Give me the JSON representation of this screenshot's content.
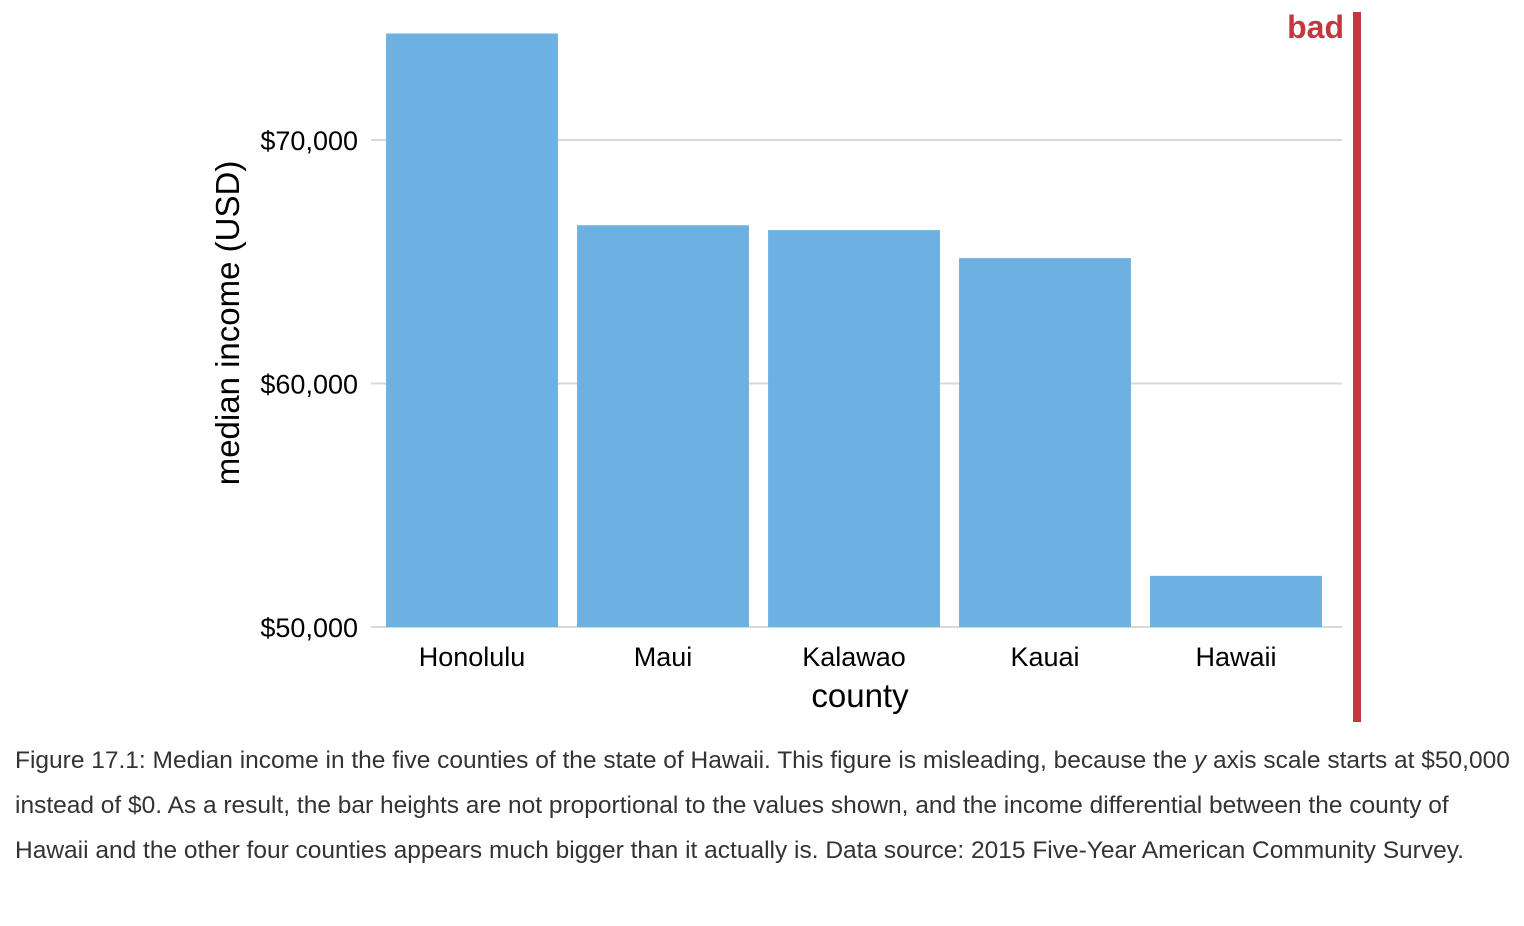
{
  "chart_data": {
    "type": "bar",
    "categories": [
      "Honolulu",
      "Maui",
      "Kalawao",
      "Kauai",
      "Hawaii"
    ],
    "values": [
      74375,
      66500,
      66300,
      65150,
      52100
    ],
    "xlabel": "county",
    "ylabel": "median income (USD)",
    "ylim": [
      50000,
      75500
    ],
    "yticks": [
      50000,
      60000,
      70000
    ],
    "ytick_labels": [
      "$50,000",
      "$60,000",
      "$70,000"
    ],
    "grid": "horizontal",
    "bar_color": "#6db1e2"
  },
  "badge": {
    "text": "bad",
    "color": "#c0393f"
  },
  "caption": {
    "part1": "Figure 17.1: Median income in the five counties of the state of Hawaii. This figure is misleading, because the ",
    "italic": "y",
    "part2": " axis scale starts at $50,000 instead of $0. As a result, the bar heights are not proportional to the values shown, and the income differential between the county of Hawaii and the other four counties appears much bigger than it actually is. Data source: 2015 Five-Year American Community Survey."
  }
}
